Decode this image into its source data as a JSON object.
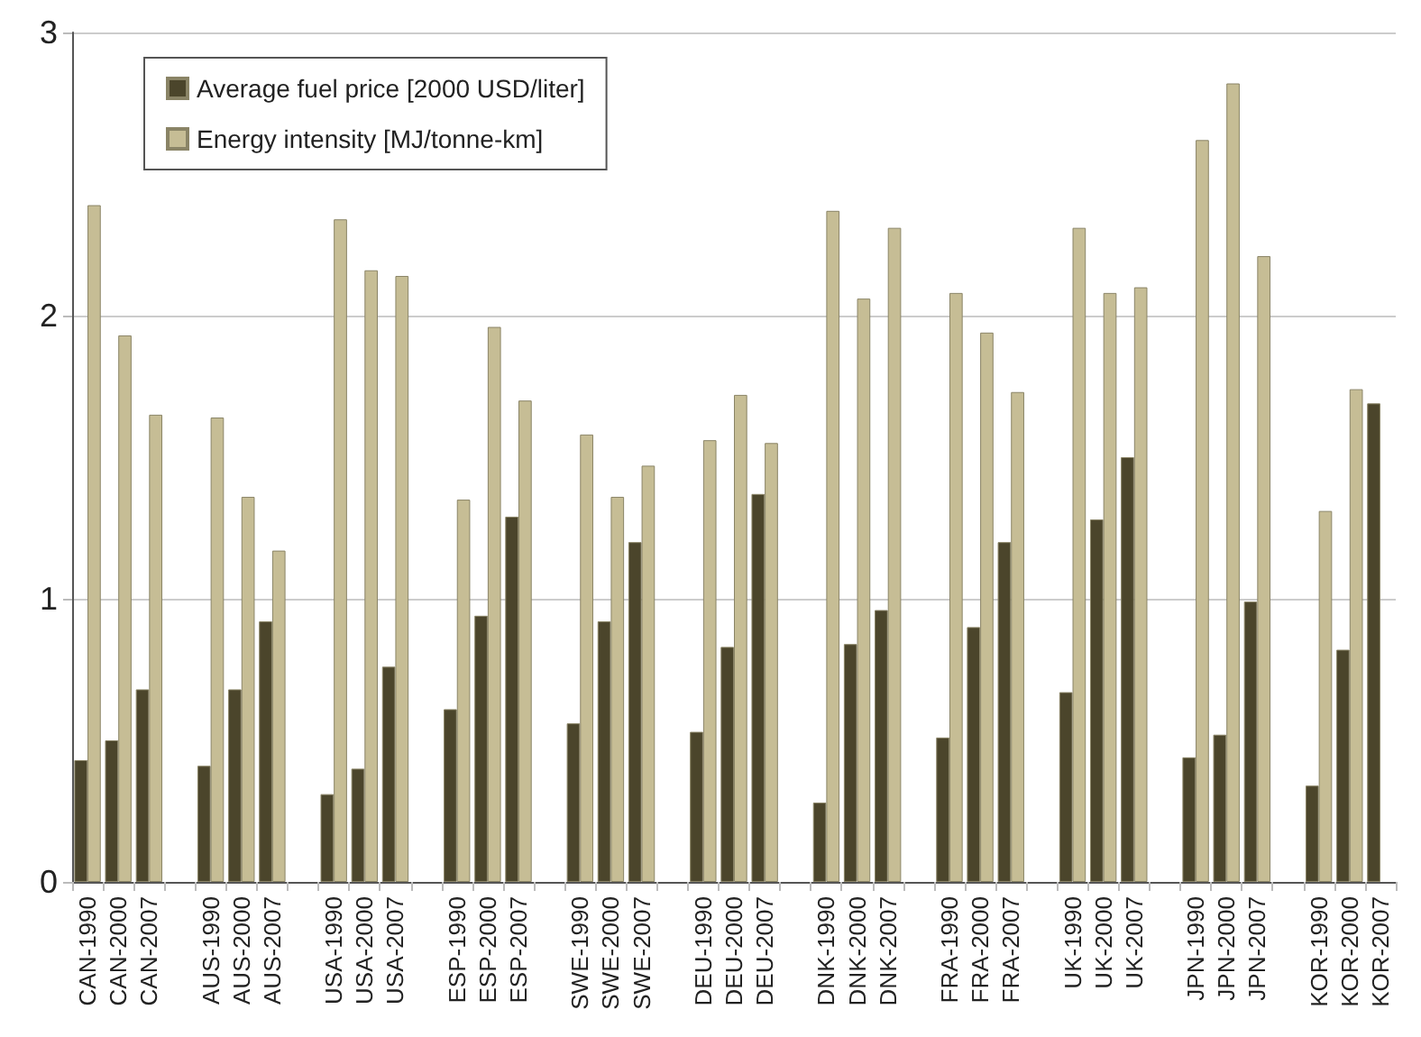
{
  "chart_data": {
    "type": "bar",
    "categories": [
      "CAN-1990",
      "CAN-2000",
      "CAN-2007",
      null,
      "AUS-1990",
      "AUS-2000",
      "AUS-2007",
      null,
      "USA-1990",
      "USA-2000",
      "USA-2007",
      null,
      "ESP-1990",
      "ESP-2000",
      "ESP-2007",
      null,
      "SWE-1990",
      "SWE-2000",
      "SWE-2007",
      null,
      "DEU-1990",
      "DEU-2000",
      "DEU-2007",
      null,
      "DNK-1990",
      "DNK-2000",
      "DNK-2007",
      null,
      "FRA-1990",
      "FRA-2000",
      "FRA-2007",
      null,
      "UK-1990",
      "UK-2000",
      "UK-2007",
      null,
      "JPN-1990",
      "JPN-2000",
      "JPN-2007",
      null,
      "KOR-1990",
      "KOR-2000",
      "KOR-2007"
    ],
    "series": [
      {
        "name": "Average fuel price [2000 USD/liter]",
        "color": "#4b452b",
        "values": [
          0.43,
          0.5,
          0.68,
          null,
          0.41,
          0.68,
          0.92,
          null,
          0.31,
          0.4,
          0.76,
          null,
          0.61,
          0.94,
          1.29,
          null,
          0.56,
          0.92,
          1.2,
          null,
          0.53,
          0.83,
          1.37,
          null,
          0.28,
          0.84,
          0.96,
          null,
          0.51,
          0.9,
          1.2,
          null,
          0.67,
          1.28,
          1.5,
          null,
          0.44,
          0.52,
          0.99,
          null,
          0.34,
          0.82,
          1.69
        ]
      },
      {
        "name": "Energy intensity [MJ/tonne-km]",
        "color": "#c6bd95",
        "values": [
          2.39,
          1.93,
          1.65,
          null,
          1.64,
          1.36,
          1.17,
          null,
          2.34,
          2.16,
          2.14,
          null,
          1.35,
          1.96,
          1.7,
          null,
          1.58,
          1.36,
          1.47,
          null,
          1.56,
          1.72,
          1.55,
          null,
          2.37,
          2.06,
          2.31,
          null,
          2.08,
          1.94,
          1.73,
          null,
          2.31,
          2.08,
          2.1,
          null,
          2.62,
          2.82,
          2.21,
          null,
          1.31,
          1.74,
          null
        ]
      }
    ],
    "ylim": [
      0,
      3
    ],
    "yticks": [
      0,
      1,
      2,
      3
    ],
    "grid": "y",
    "legend": "top left"
  }
}
